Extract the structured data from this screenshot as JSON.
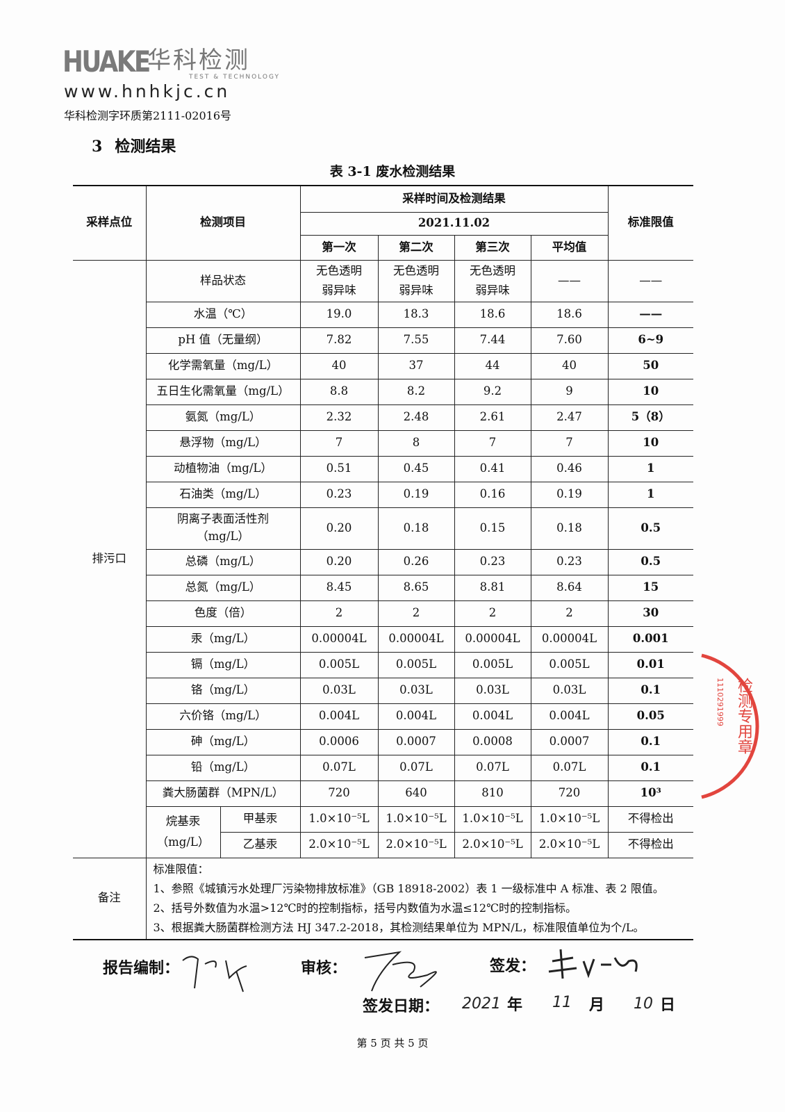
{
  "header": {
    "logo_mark": "HUAKE",
    "logo_cn": "华科检测",
    "logo_en": "TEST & TECHNOLOGY",
    "logo_url": "www.hnhkjc.cn",
    "report_no": "华科检测字环质第2111-02016号"
  },
  "section": {
    "number": "3",
    "title": "检测结果"
  },
  "table": {
    "title": "表 3-1  废水检测结果",
    "headers": {
      "site": "采样点位",
      "item": "检测项目",
      "group": "采样时间及检测结果",
      "date": "2021.11.02",
      "runs": [
        "第一次",
        "第二次",
        "第三次",
        "平均值"
      ],
      "limit": "标准限值"
    },
    "site": "排污口",
    "state_row": {
      "item": "样品状态",
      "values": [
        "无色透明\n弱异味",
        "无色透明\n弱异味",
        "无色透明\n弱异味",
        "——"
      ],
      "limit": "——"
    },
    "rows": [
      {
        "item": "水温（℃）",
        "values": [
          "19.0",
          "18.3",
          "18.6",
          "18.6"
        ],
        "limit": "——"
      },
      {
        "item": "pH 值（无量纲）",
        "values": [
          "7.82",
          "7.55",
          "7.44",
          "7.60"
        ],
        "limit": "6~9"
      },
      {
        "item": "化学需氧量（mg/L）",
        "values": [
          "40",
          "37",
          "44",
          "40"
        ],
        "limit": "50"
      },
      {
        "item": "五日生化需氧量（mg/L）",
        "values": [
          "8.8",
          "8.2",
          "9.2",
          "9"
        ],
        "limit": "10"
      },
      {
        "item": "氨氮（mg/L）",
        "values": [
          "2.32",
          "2.48",
          "2.61",
          "2.47"
        ],
        "limit": "5（8）"
      },
      {
        "item": "悬浮物（mg/L）",
        "values": [
          "7",
          "8",
          "7",
          "7"
        ],
        "limit": "10"
      },
      {
        "item": "动植物油（mg/L）",
        "values": [
          "0.51",
          "0.45",
          "0.41",
          "0.46"
        ],
        "limit": "1"
      },
      {
        "item": "石油类（mg/L）",
        "values": [
          "0.23",
          "0.19",
          "0.16",
          "0.19"
        ],
        "limit": "1"
      },
      {
        "item": "阴离子表面活性剂\n（mg/L）",
        "values": [
          "0.20",
          "0.18",
          "0.15",
          "0.18"
        ],
        "limit": "0.5"
      },
      {
        "item": "总磷（mg/L）",
        "values": [
          "0.20",
          "0.26",
          "0.23",
          "0.23"
        ],
        "limit": "0.5"
      },
      {
        "item": "总氮（mg/L）",
        "values": [
          "8.45",
          "8.65",
          "8.81",
          "8.64"
        ],
        "limit": "15"
      },
      {
        "item": "色度（倍）",
        "values": [
          "2",
          "2",
          "2",
          "2"
        ],
        "limit": "30"
      },
      {
        "item": "汞（mg/L）",
        "values": [
          "0.00004L",
          "0.00004L",
          "0.00004L",
          "0.00004L"
        ],
        "limit": "0.001"
      },
      {
        "item": "镉（mg/L）",
        "values": [
          "0.005L",
          "0.005L",
          "0.005L",
          "0.005L"
        ],
        "limit": "0.01"
      },
      {
        "item": "铬（mg/L）",
        "values": [
          "0.03L",
          "0.03L",
          "0.03L",
          "0.03L"
        ],
        "limit": "0.1"
      },
      {
        "item": "六价铬（mg/L）",
        "values": [
          "0.004L",
          "0.004L",
          "0.004L",
          "0.004L"
        ],
        "limit": "0.05"
      },
      {
        "item": "砷（mg/L）",
        "values": [
          "0.0006",
          "0.0007",
          "0.0008",
          "0.0007"
        ],
        "limit": "0.1"
      },
      {
        "item": "铅（mg/L）",
        "values": [
          "0.07L",
          "0.07L",
          "0.07L",
          "0.07L"
        ],
        "limit": "0.1"
      },
      {
        "item": "粪大肠菌群（MPN/L）",
        "values": [
          "720",
          "640",
          "810",
          "720"
        ],
        "limit": "10³"
      }
    ],
    "alkyl": {
      "group": "烷基汞\n（mg/L）",
      "rows": [
        {
          "item": "甲基汞",
          "values": [
            "1.0×10⁻⁵L",
            "1.0×10⁻⁵L",
            "1.0×10⁻⁵L",
            "1.0×10⁻⁵L"
          ],
          "limit": "不得检出"
        },
        {
          "item": "乙基汞",
          "values": [
            "2.0×10⁻⁵L",
            "2.0×10⁻⁵L",
            "2.0×10⁻⁵L",
            "2.0×10⁻⁵L"
          ],
          "limit": "不得检出"
        }
      ]
    },
    "notes": {
      "label": "备注",
      "lines": [
        "标准限值：",
        "1、参照《城镇污水处理厂污染物排放标准》（GB 18918-2002）表 1 一级标准中 A 标准、表 2 限值。",
        "2、括号外数值为水温>12℃时的控制指标，括号内数值为水温≤12℃时的控制指标。",
        "3、根据粪大肠菌群检测方法 HJ 347.2-2018，其检测结果单位为 MPN/L，标准限值单位为个/L。"
      ]
    }
  },
  "signatures": {
    "compiled_label": "报告编制：",
    "review_label": "审核：",
    "issue_label": "签发：",
    "date_label": "签发日期：",
    "date_year": "2021",
    "year_unit": "年",
    "date_month": "11",
    "month_unit": "月",
    "date_day": "10",
    "day_unit": "日"
  },
  "stamp": {
    "text": "检测专用章",
    "code": "1110291999",
    "color": "#e2453e"
  },
  "footer": "第 5 页 共 5 页"
}
